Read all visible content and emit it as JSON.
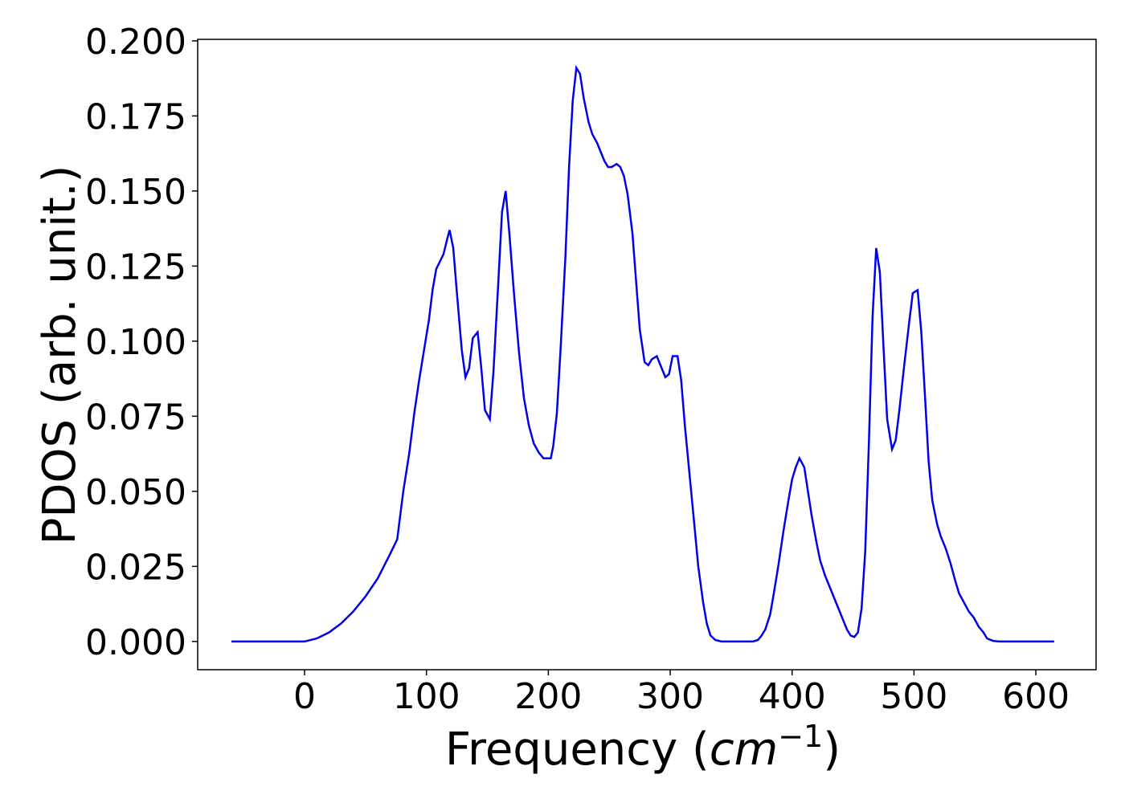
{
  "chart_data": {
    "type": "line",
    "xlabel_parts": [
      "Frequency (",
      "cm",
      "−1",
      ")"
    ],
    "ylabel": "PDOS (arb. unit.)",
    "xlim": [
      -87.7,
      649.4
    ],
    "ylim": [
      -0.0094,
      0.2005
    ],
    "xticks": [
      0,
      100,
      200,
      300,
      400,
      500,
      600
    ],
    "yticks": [
      {
        "value": 0,
        "label": "0.000"
      },
      {
        "value": 0.025,
        "label": "0.025"
      },
      {
        "value": 0.05,
        "label": "0.050"
      },
      {
        "value": 0.075,
        "label": "0.075"
      },
      {
        "value": 0.1,
        "label": "0.100"
      },
      {
        "value": 0.125,
        "label": "0.125"
      },
      {
        "value": 0.15,
        "label": "0.150"
      },
      {
        "value": 0.175,
        "label": "0.175"
      },
      {
        "value": 0.2,
        "label": "0.200"
      }
    ],
    "grid": false,
    "series": [
      {
        "color": "#0000ee",
        "x": [
          -60,
          0,
          10,
          20,
          30,
          40,
          50,
          60,
          70,
          76,
          81,
          86,
          90,
          94,
          98,
          102,
          105,
          108,
          114,
          117,
          119,
          122,
          125,
          129,
          132,
          135,
          138,
          142,
          145,
          148,
          152,
          155,
          159,
          162,
          165,
          168,
          172,
          176,
          180,
          184,
          188,
          192,
          196,
          200,
          202,
          204,
          207,
          210,
          214,
          217,
          220,
          223,
          226,
          229,
          233,
          236,
          240,
          243,
          246,
          249,
          252,
          256,
          259,
          262,
          265,
          269,
          272,
          275,
          279,
          282,
          285,
          289,
          292,
          296,
          299,
          302,
          306,
          309,
          312,
          316,
          320,
          323,
          327,
          330,
          333,
          337,
          342,
          368,
          372,
          375,
          378,
          382,
          385,
          389,
          393,
          397,
          400,
          403,
          406,
          410,
          413,
          416,
          420,
          423,
          427,
          431,
          435,
          439,
          442,
          445,
          448,
          451,
          454,
          457,
          460,
          463,
          466,
          469,
          472,
          475,
          478,
          482,
          485,
          488,
          492,
          496,
          499,
          503,
          506,
          509,
          512,
          515,
          519,
          522,
          526,
          530,
          534,
          537,
          541,
          545,
          549,
          553,
          557,
          560,
          565,
          570,
          615
        ],
        "values": [
          0,
          0,
          0.001,
          0.003,
          0.006,
          0.01,
          0.015,
          0.021,
          0.029,
          0.034,
          0.05,
          0.063,
          0.076,
          0.087,
          0.097,
          0.107,
          0.117,
          0.124,
          0.129,
          0.134,
          0.137,
          0.131,
          0.116,
          0.097,
          0.088,
          0.091,
          0.101,
          0.103,
          0.091,
          0.077,
          0.074,
          0.09,
          0.12,
          0.143,
          0.15,
          0.136,
          0.115,
          0.096,
          0.081,
          0.072,
          0.066,
          0.063,
          0.061,
          0.061,
          0.061,
          0.065,
          0.076,
          0.097,
          0.128,
          0.158,
          0.18,
          0.191,
          0.189,
          0.181,
          0.173,
          0.169,
          0.166,
          0.163,
          0.16,
          0.158,
          0.158,
          0.159,
          0.158,
          0.155,
          0.149,
          0.136,
          0.12,
          0.104,
          0.093,
          0.092,
          0.094,
          0.095,
          0.092,
          0.088,
          0.089,
          0.095,
          0.095,
          0.087,
          0.072,
          0.055,
          0.038,
          0.025,
          0.013,
          0.006,
          0.002,
          0.0005,
          0,
          0,
          0.0005,
          0.002,
          0.004,
          0.009,
          0.016,
          0.026,
          0.037,
          0.047,
          0.054,
          0.058,
          0.061,
          0.058,
          0.05,
          0.042,
          0.033,
          0.027,
          0.022,
          0.018,
          0.014,
          0.01,
          0.007,
          0.004,
          0.002,
          0.0015,
          0.003,
          0.011,
          0.03,
          0.066,
          0.108,
          0.131,
          0.123,
          0.098,
          0.074,
          0.064,
          0.067,
          0.077,
          0.092,
          0.106,
          0.116,
          0.117,
          0.103,
          0.082,
          0.06,
          0.047,
          0.039,
          0.035,
          0.031,
          0.026,
          0.02,
          0.016,
          0.013,
          0.01,
          0.008,
          0.005,
          0.003,
          0.001,
          0.0002,
          0,
          0
        ]
      }
    ]
  }
}
